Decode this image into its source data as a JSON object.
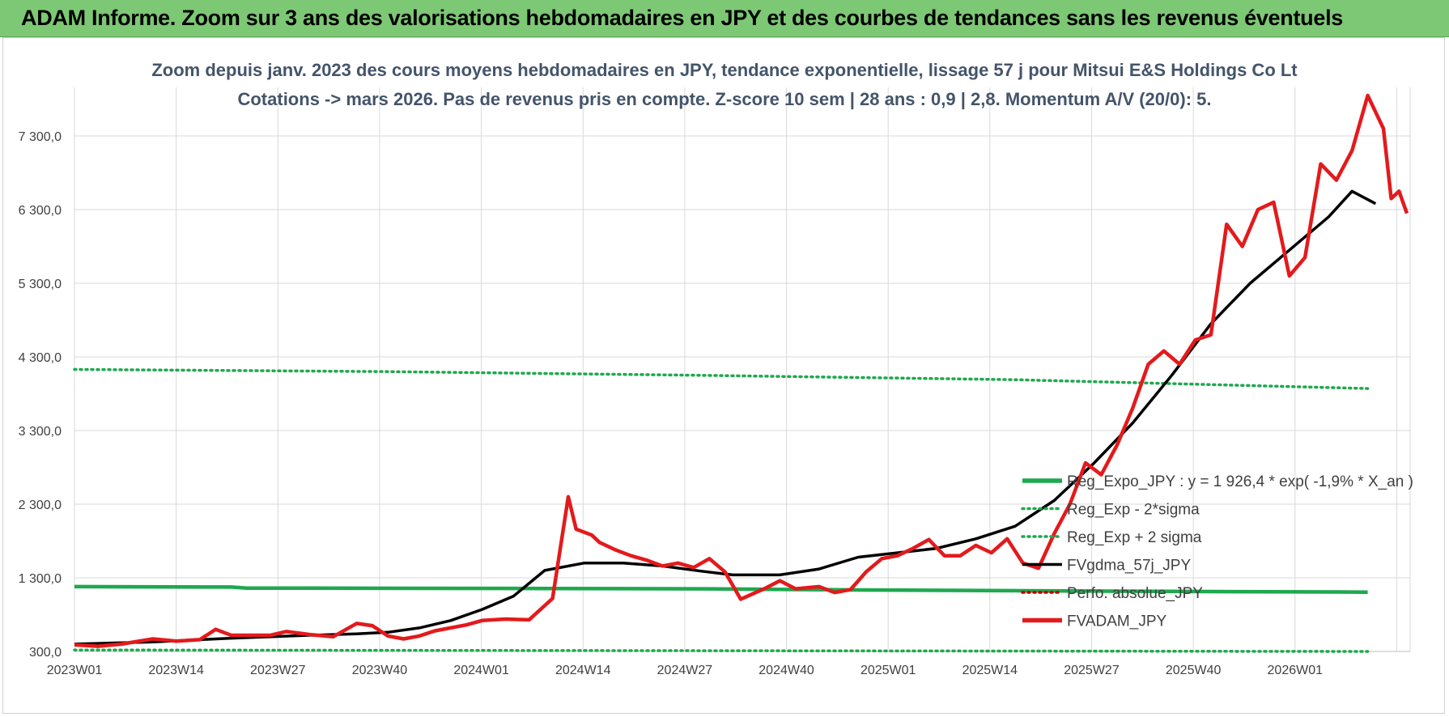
{
  "banner": {
    "title": "ADAM Informe. Zoom sur 3 ans des valorisations hebdomadaires en JPY et des courbes de tendances sans les revenus éventuels",
    "color": "#7dc874"
  },
  "chart_data": {
    "type": "line",
    "title_line1": "Zoom depuis janv. 2023 des cours moyens hebdomadaires en JPY, tendance exponentielle, lissage 57 j pour Mitsui E&S Holdings Co Lt",
    "title_line2": "Cotations -> mars 2026. Pas de revenus pris en compte. Z-score 10 sem | 28 ans : 0,9 | 2,8. Momentum A/V (20/0): 5.",
    "x_tick_labels": [
      "2023W01",
      "2023W14",
      "2023W27",
      "2023W40",
      "2024W01",
      "2024W14",
      "2024W27",
      "2024W40",
      "2025W01",
      "2025W14",
      "2025W27",
      "2025W40",
      "2026W01"
    ],
    "y_tick_labels": [
      "300,0",
      "1 300,0",
      "2 300,0",
      "3 300,0",
      "4 300,0",
      "5 300,0",
      "6 300,0",
      "7 300,0"
    ],
    "ylim": [
      300,
      7300
    ],
    "grid": true,
    "legend_position": "right",
    "series": [
      {
        "name": "Reg_Expo_JPY : y = 1 926,4 * exp( -1,9% *  X_an )",
        "color": "#1fa84f",
        "style": "solid-thick",
        "points": [
          [
            0,
            1180
          ],
          [
            20,
            1175
          ],
          [
            22,
            1160
          ],
          [
            60,
            1155
          ],
          [
            80,
            1150
          ],
          [
            100,
            1135
          ],
          [
            140,
            1115
          ],
          [
            165,
            1105
          ]
        ]
      },
      {
        "name": "Reg_Exp - 2*sigma",
        "color": "#1fa84f",
        "style": "dotted",
        "points": [
          [
            0,
            320
          ],
          [
            165,
            300
          ]
        ]
      },
      {
        "name": "Reg_Exp + 2 sigma",
        "color": "#1fa84f",
        "style": "dotted",
        "points": [
          [
            0,
            4130
          ],
          [
            40,
            4100
          ],
          [
            80,
            4050
          ],
          [
            120,
            3990
          ],
          [
            165,
            3870
          ]
        ]
      },
      {
        "name": "FVgdma_57j_JPY",
        "color": "#000000",
        "style": "solid",
        "points": [
          [
            0,
            400
          ],
          [
            10,
            430
          ],
          [
            20,
            480
          ],
          [
            30,
            520
          ],
          [
            36,
            540
          ],
          [
            40,
            560
          ],
          [
            44,
            620
          ],
          [
            48,
            720
          ],
          [
            52,
            870
          ],
          [
            56,
            1050
          ],
          [
            60,
            1400
          ],
          [
            65,
            1500
          ],
          [
            70,
            1500
          ],
          [
            75,
            1460
          ],
          [
            80,
            1390
          ],
          [
            84,
            1340
          ],
          [
            90,
            1340
          ],
          [
            95,
            1420
          ],
          [
            100,
            1580
          ],
          [
            110,
            1700
          ],
          [
            115,
            1830
          ],
          [
            120,
            2000
          ],
          [
            125,
            2350
          ],
          [
            130,
            2850
          ],
          [
            135,
            3400
          ],
          [
            140,
            4050
          ],
          [
            145,
            4750
          ],
          [
            150,
            5300
          ],
          [
            155,
            5750
          ],
          [
            160,
            6200
          ],
          [
            163,
            6550
          ],
          [
            166,
            6380
          ]
        ]
      },
      {
        "name": "Perfo. absolue_JPY",
        "color": "#c00000",
        "style": "dotted",
        "points": []
      },
      {
        "name": "FVADAM_JPY",
        "color": "#e31a1c",
        "style": "solid-thick",
        "points": [
          [
            0,
            390
          ],
          [
            3,
            370
          ],
          [
            6,
            400
          ],
          [
            10,
            470
          ],
          [
            13,
            440
          ],
          [
            16,
            460
          ],
          [
            18,
            600
          ],
          [
            20,
            520
          ],
          [
            25,
            520
          ],
          [
            27,
            570
          ],
          [
            30,
            530
          ],
          [
            33,
            500
          ],
          [
            36,
            680
          ],
          [
            38,
            650
          ],
          [
            40,
            510
          ],
          [
            42,
            470
          ],
          [
            44,
            510
          ],
          [
            46,
            580
          ],
          [
            50,
            660
          ],
          [
            52,
            720
          ],
          [
            55,
            740
          ],
          [
            58,
            730
          ],
          [
            61,
            1020
          ],
          [
            63,
            2400
          ],
          [
            64,
            1960
          ],
          [
            66,
            1880
          ],
          [
            67,
            1780
          ],
          [
            69,
            1680
          ],
          [
            71,
            1600
          ],
          [
            73,
            1540
          ],
          [
            75,
            1460
          ],
          [
            77,
            1500
          ],
          [
            79,
            1440
          ],
          [
            81,
            1560
          ],
          [
            83,
            1380
          ],
          [
            85,
            1010
          ],
          [
            88,
            1150
          ],
          [
            90,
            1260
          ],
          [
            92,
            1150
          ],
          [
            95,
            1180
          ],
          [
            97,
            1100
          ],
          [
            99,
            1140
          ],
          [
            101,
            1380
          ],
          [
            103,
            1560
          ],
          [
            105,
            1600
          ],
          [
            107,
            1700
          ],
          [
            109,
            1820
          ],
          [
            111,
            1600
          ],
          [
            113,
            1600
          ],
          [
            115,
            1740
          ],
          [
            117,
            1640
          ],
          [
            119,
            1830
          ],
          [
            121,
            1500
          ],
          [
            123,
            1430
          ],
          [
            125,
            1900
          ],
          [
            127,
            2300
          ],
          [
            129,
            2860
          ],
          [
            131,
            2700
          ],
          [
            133,
            3100
          ],
          [
            135,
            3600
          ],
          [
            137,
            4200
          ],
          [
            139,
            4380
          ],
          [
            141,
            4200
          ],
          [
            143,
            4530
          ],
          [
            145,
            4600
          ],
          [
            147,
            6100
          ],
          [
            149,
            5800
          ],
          [
            151,
            6300
          ],
          [
            153,
            6400
          ],
          [
            155,
            5400
          ],
          [
            157,
            5650
          ],
          [
            159,
            6920
          ],
          [
            161,
            6700
          ],
          [
            163,
            7100
          ],
          [
            165,
            7850
          ],
          [
            167,
            7400
          ],
          [
            168,
            6450
          ],
          [
            169,
            6550
          ],
          [
            170,
            6250
          ]
        ]
      }
    ]
  }
}
